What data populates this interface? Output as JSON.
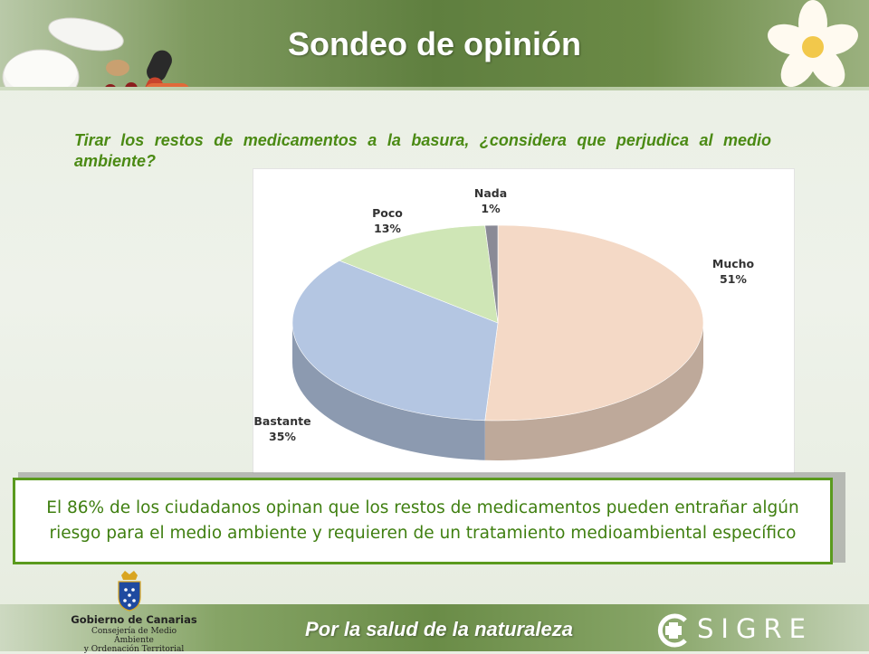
{
  "header": {
    "title": "Sondeo de opinión"
  },
  "question": "Tirar los restos de medicamentos a la basura, ¿considera que perjudica al medio ambiente?",
  "chart_data": {
    "type": "pie",
    "categories": [
      "Mucho",
      "Bastante",
      "Poco",
      "Nada"
    ],
    "values": [
      51,
      35,
      13,
      1
    ],
    "value_labels": [
      "51%",
      "35%",
      "13%",
      "1%"
    ],
    "colors": [
      "#f4d9c6",
      "#b4c6e2",
      "#cfe6b6",
      "#8a8a96"
    ],
    "title": "",
    "legend": "none"
  },
  "summary": "El 86% de los ciudadanos opinan que los restos de medicamentos pueden entrañar algún riesgo para el medio ambiente y requieren de un tratamiento medioambiental específico",
  "footer": {
    "slogan": "Por  la salud de la naturaleza",
    "gov_name": "Gobierno de Canarias",
    "gov_sub": "Consejería de Medio Ambiente\ny Ordenación Territorial",
    "brand": "SIGRE"
  }
}
